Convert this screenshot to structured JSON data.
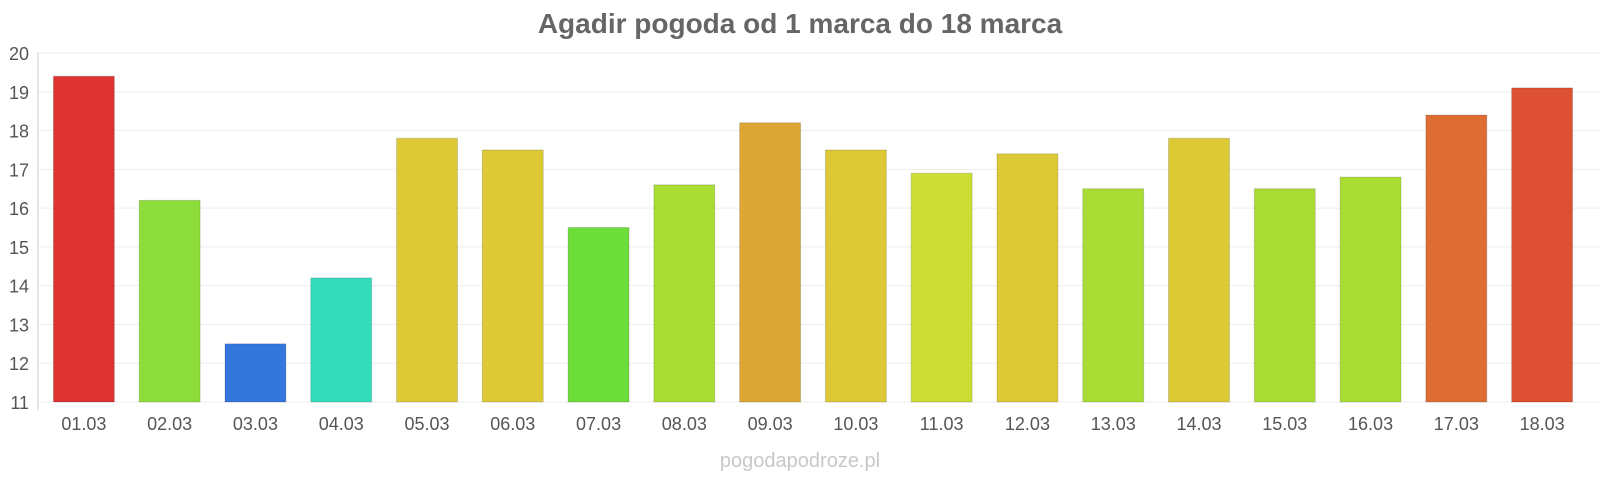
{
  "chart_data": {
    "type": "bar",
    "title": "Agadir pogoda od 1 marca do 18 marca",
    "xlabel": "",
    "ylabel": "",
    "ylim": [
      11,
      20
    ],
    "yticks": [
      11,
      12,
      13,
      14,
      15,
      16,
      17,
      18,
      19,
      20
    ],
    "grid": true,
    "categories": [
      "01.03",
      "02.03",
      "03.03",
      "04.03",
      "05.03",
      "06.03",
      "07.03",
      "08.03",
      "09.03",
      "10.03",
      "11.03",
      "12.03",
      "13.03",
      "14.03",
      "15.03",
      "16.03",
      "17.03",
      "18.03"
    ],
    "values": [
      19.4,
      16.2,
      12.5,
      14.2,
      17.8,
      17.5,
      15.5,
      16.6,
      18.2,
      17.5,
      16.9,
      17.4,
      16.5,
      17.8,
      16.5,
      16.8,
      18.4,
      19.1
    ],
    "colors": [
      "#dd3333",
      "#8ddd3a",
      "#3377dd",
      "#33ddbb",
      "#dcc935",
      "#dcc935",
      "#6ddd3a",
      "#aadd33",
      "#dca735",
      "#dcc935",
      "#ccdd33",
      "#dcc935",
      "#aadd33",
      "#dcc935",
      "#aadd33",
      "#aadd33",
      "#dd6d33",
      "#dd5033"
    ]
  },
  "watermark": "pogodapodroze.pl"
}
